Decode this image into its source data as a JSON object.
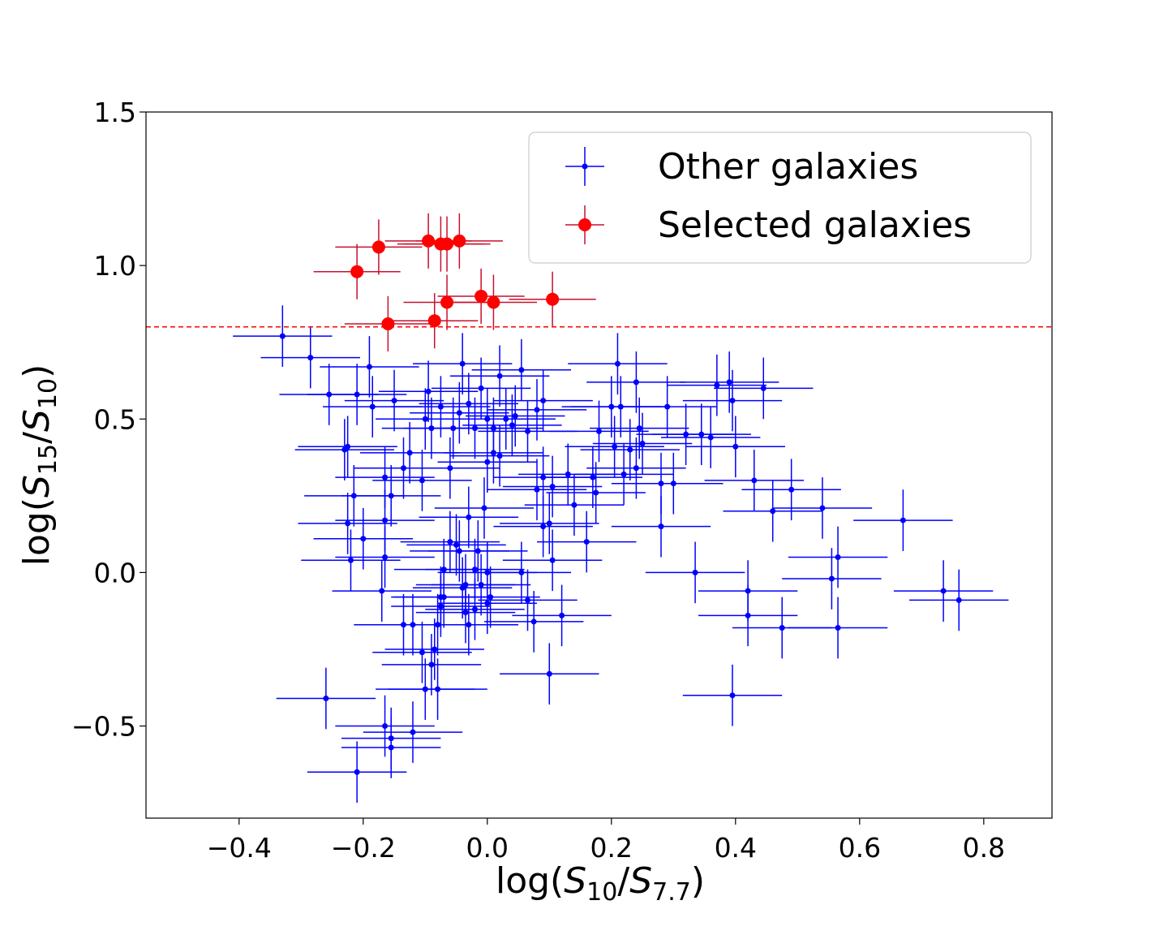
{
  "chart_data": {
    "type": "scatter",
    "title": "",
    "xlabel": "log(S10/S7.7)",
    "ylabel": "log(S15/S10)",
    "xlabel_parts": {
      "pre": "log(",
      "var1": "S",
      "sub1": "10",
      "slash": "/",
      "var2": "S",
      "sub2": "7.7",
      "post": ")"
    },
    "ylabel_parts": {
      "pre": "log(",
      "var1": "S",
      "sub1": "15",
      "slash": "/",
      "var2": "S",
      "sub2": "10",
      "post": ")"
    },
    "xlim": [
      -0.55,
      0.91
    ],
    "ylim": [
      -0.8,
      1.5
    ],
    "x_ticks": [
      -0.4,
      -0.2,
      0.0,
      0.2,
      0.4,
      0.6,
      0.8
    ],
    "x_tick_labels": [
      "−0.4",
      "−0.2",
      "0.0",
      "0.2",
      "0.4",
      "0.6",
      "0.8"
    ],
    "y_ticks": [
      -0.5,
      0.0,
      0.5,
      1.0,
      1.5
    ],
    "y_tick_labels": [
      "−0.5",
      "0.0",
      "0.5",
      "1.0",
      "1.5"
    ],
    "grid": false,
    "legend_position": "top-right",
    "threshold": {
      "y": 0.8,
      "color": "#ff0000",
      "style": "dashed"
    },
    "colors": {
      "other": "#0000ff",
      "selected": "#ff0000",
      "selected_err": "#c8102e"
    },
    "series": [
      {
        "name": "Other galaxies",
        "color": "#0000ff",
        "marker": "small",
        "x_err": 0.08,
        "y_err": 0.1,
        "points": [
          [
            -0.33,
            0.77
          ],
          [
            -0.285,
            0.7
          ],
          [
            -0.255,
            0.58
          ],
          [
            -0.19,
            0.67
          ],
          [
            -0.185,
            0.54
          ],
          [
            -0.21,
            0.58
          ],
          [
            -0.15,
            0.56
          ],
          [
            -0.125,
            0.39
          ],
          [
            -0.135,
            0.34
          ],
          [
            -0.225,
            0.41
          ],
          [
            -0.23,
            0.4
          ],
          [
            -0.215,
            0.25
          ],
          [
            -0.165,
            0.31
          ],
          [
            -0.155,
            0.25
          ],
          [
            -0.105,
            0.3
          ],
          [
            -0.225,
            0.16
          ],
          [
            -0.22,
            0.04
          ],
          [
            -0.2,
            0.11
          ],
          [
            -0.165,
            0.17
          ],
          [
            -0.165,
            0.05
          ],
          [
            -0.17,
            -0.06
          ],
          [
            -0.135,
            -0.17
          ],
          [
            -0.12,
            -0.17
          ],
          [
            -0.1,
            0.5
          ],
          [
            -0.095,
            0.59
          ],
          [
            -0.09,
            0.47
          ],
          [
            -0.075,
            0.54
          ],
          [
            -0.055,
            0.47
          ],
          [
            -0.045,
            0.52
          ],
          [
            -0.04,
            0.68
          ],
          [
            -0.02,
            0.47
          ],
          [
            -0.01,
            0.6
          ],
          [
            0.0,
            0.5
          ],
          [
            0.01,
            0.47
          ],
          [
            0.02,
            0.64
          ],
          [
            0.03,
            0.5
          ],
          [
            0.04,
            0.48
          ],
          [
            0.045,
            0.51
          ],
          [
            0.055,
            0.66
          ],
          [
            0.065,
            0.46
          ],
          [
            0.08,
            0.53
          ],
          [
            0.09,
            0.56
          ],
          [
            -0.06,
            0.34
          ],
          [
            -0.03,
            0.55
          ],
          [
            0.0,
            0.36
          ],
          [
            0.01,
            0.39
          ],
          [
            0.02,
            0.38
          ],
          [
            0.08,
            0.27
          ],
          [
            0.09,
            0.31
          ],
          [
            0.105,
            0.28
          ],
          [
            0.1,
            0.16
          ],
          [
            0.13,
            0.32
          ],
          [
            0.14,
            0.22
          ],
          [
            0.17,
            0.31
          ],
          [
            0.175,
            0.26
          ],
          [
            0.18,
            0.46
          ],
          [
            0.2,
            0.54
          ],
          [
            0.205,
            0.41
          ],
          [
            0.21,
            0.68
          ],
          [
            0.215,
            0.54
          ],
          [
            0.22,
            0.32
          ],
          [
            0.23,
            0.4
          ],
          [
            0.24,
            0.34
          ],
          [
            0.24,
            0.62
          ],
          [
            0.245,
            0.47
          ],
          [
            0.25,
            0.42
          ],
          [
            0.28,
            0.29
          ],
          [
            0.28,
            0.15
          ],
          [
            0.29,
            0.54
          ],
          [
            0.3,
            0.29
          ],
          [
            0.32,
            0.45
          ],
          [
            0.345,
            0.45
          ],
          [
            0.36,
            0.44
          ],
          [
            0.37,
            0.61
          ],
          [
            0.39,
            0.62
          ],
          [
            0.395,
            0.56
          ],
          [
            0.4,
            0.41
          ],
          [
            0.43,
            0.3
          ],
          [
            0.445,
            0.6
          ],
          [
            0.46,
            0.2
          ],
          [
            0.49,
            0.27
          ],
          [
            0.54,
            0.21
          ],
          [
            0.555,
            -0.02
          ],
          [
            0.565,
            0.05
          ],
          [
            0.565,
            -0.18
          ],
          [
            0.67,
            0.17
          ],
          [
            0.735,
            -0.06
          ],
          [
            0.76,
            -0.09
          ],
          [
            0.42,
            -0.06
          ],
          [
            0.42,
            -0.14
          ],
          [
            0.475,
            -0.18
          ],
          [
            0.395,
            -0.4
          ],
          [
            0.335,
            0.0
          ],
          [
            0.16,
            0.1
          ],
          [
            0.105,
            0.04
          ],
          [
            0.12,
            -0.14
          ],
          [
            0.1,
            -0.33
          ],
          [
            0.09,
            0.15
          ],
          [
            0.075,
            -0.16
          ],
          [
            0.065,
            -0.09
          ],
          [
            0.055,
            0.0
          ],
          [
            -0.02,
            0.01
          ],
          [
            -0.03,
            0.18
          ],
          [
            -0.015,
            0.07
          ],
          [
            -0.005,
            0.21
          ],
          [
            0.0,
            0.0
          ],
          [
            -0.01,
            -0.04
          ],
          [
            -0.02,
            -0.12
          ],
          [
            -0.04,
            -0.05
          ],
          [
            -0.045,
            0.07
          ],
          [
            -0.05,
            0.09
          ],
          [
            -0.06,
            0.1
          ],
          [
            -0.07,
            0.01
          ],
          [
            -0.075,
            -0.08
          ],
          [
            -0.075,
            -0.11
          ],
          [
            -0.08,
            -0.17
          ],
          [
            -0.085,
            -0.25
          ],
          [
            -0.09,
            -0.3
          ],
          [
            -0.1,
            -0.38
          ],
          [
            -0.035,
            -0.13
          ],
          [
            -0.03,
            -0.17
          ],
          [
            0.0,
            -0.1
          ],
          [
            -0.165,
            -0.5
          ],
          [
            -0.155,
            -0.54
          ],
          [
            -0.155,
            -0.57
          ],
          [
            -0.12,
            -0.52
          ],
          [
            -0.21,
            -0.65
          ],
          [
            -0.26,
            -0.41
          ],
          [
            -0.105,
            -0.26
          ],
          [
            -0.08,
            -0.38
          ],
          [
            -0.07,
            -0.08
          ],
          [
            0.005,
            -0.08
          ],
          [
            -0.035,
            -0.04
          ]
        ]
      },
      {
        "name": "Selected galaxies",
        "color": "#ff0000",
        "marker": "large",
        "x_err": 0.07,
        "y_err": 0.09,
        "points": [
          [
            -0.21,
            0.98
          ],
          [
            -0.175,
            1.06
          ],
          [
            -0.095,
            1.08
          ],
          [
            -0.075,
            1.07
          ],
          [
            -0.065,
            1.07
          ],
          [
            -0.045,
            1.08
          ],
          [
            -0.16,
            0.81
          ],
          [
            -0.085,
            0.82
          ],
          [
            -0.065,
            0.88
          ],
          [
            -0.01,
            0.9
          ],
          [
            0.01,
            0.88
          ],
          [
            0.105,
            0.89
          ]
        ]
      }
    ]
  }
}
